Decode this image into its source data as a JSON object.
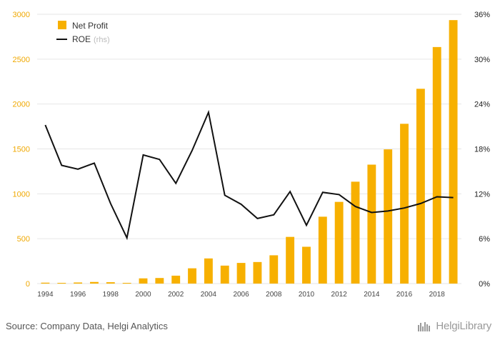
{
  "chart_data": {
    "type": "bar",
    "categories": [
      "1994",
      "1995",
      "1996",
      "1997",
      "1998",
      "1999",
      "2000",
      "2001",
      "2002",
      "2003",
      "2004",
      "2005",
      "2006",
      "2007",
      "2008",
      "2009",
      "2010",
      "2011",
      "2012",
      "2013",
      "2014",
      "2015",
      "2016",
      "2017",
      "2018",
      "2019"
    ],
    "x_tick_labels": [
      "1994",
      "1996",
      "1998",
      "2000",
      "2002",
      "2004",
      "2006",
      "2008",
      "2010",
      "2012",
      "2014",
      "2016",
      "2018"
    ],
    "series": [
      {
        "name": "Net Profit",
        "type": "bar",
        "axis": "left",
        "values": [
          10,
          8,
          12,
          18,
          15,
          8,
          58,
          62,
          88,
          170,
          280,
          200,
          230,
          240,
          315,
          520,
          410,
          745,
          910,
          1135,
          1325,
          1495,
          1780,
          2170,
          2635,
          2935
        ]
      },
      {
        "name": "ROE",
        "name_suffix": "(rhs)",
        "type": "line",
        "axis": "right",
        "values": [
          21.2,
          15.8,
          15.3,
          16.1,
          10.7,
          6.1,
          17.2,
          16.6,
          13.4,
          17.8,
          22.9,
          11.8,
          10.6,
          8.7,
          9.2,
          12.3,
          7.8,
          12.2,
          11.9,
          10.3,
          9.5,
          9.7,
          10.1,
          10.7,
          11.6,
          11.5
        ]
      }
    ],
    "y_left": {
      "min": 0,
      "max": 3000,
      "ticks": [
        0,
        500,
        1000,
        1500,
        2000,
        2500,
        3000
      ]
    },
    "y_right": {
      "min": 0,
      "max": 36,
      "ticks": [
        0,
        6,
        12,
        18,
        24,
        30,
        36
      ],
      "tick_labels": [
        "0%",
        "6%",
        "12%",
        "18%",
        "24%",
        "30%",
        "36%"
      ]
    },
    "grid": true,
    "legend_position": "top-left"
  },
  "colors": {
    "bar": "#f7b000",
    "line": "#111111",
    "grid": "#e6e6e6",
    "left_ticks": "#f0a800"
  },
  "footer": {
    "source": "Source: Company Data, Helgi Analytics",
    "brand": "HelgiLibrary"
  }
}
